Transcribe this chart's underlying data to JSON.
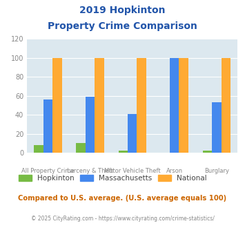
{
  "title_line1": "2019 Hopkinton",
  "title_line2": "Property Crime Comparison",
  "categories": [
    "All Property Crime",
    "Larceny & Theft",
    "Motor Vehicle Theft",
    "Arson",
    "Burglary"
  ],
  "cat_labels_line1": [
    "All Property Crime",
    "Larceny & Theft",
    "Motor Vehicle Theft",
    "Arson",
    "Burglary"
  ],
  "hopkinton": [
    8,
    10,
    2,
    0,
    2
  ],
  "massachusetts": [
    56,
    59,
    41,
    100,
    53
  ],
  "national": [
    100,
    100,
    100,
    100,
    100
  ],
  "colors": {
    "hopkinton": "#77bb44",
    "massachusetts": "#4488ee",
    "national": "#ffaa33"
  },
  "ylim": [
    0,
    120
  ],
  "yticks": [
    0,
    20,
    40,
    60,
    80,
    100,
    120
  ],
  "title_color": "#2255aa",
  "plot_bg": "#dce8ef",
  "footer_text": "Compared to U.S. average. (U.S. average equals 100)",
  "copyright_text": "© 2025 CityRating.com - https://www.cityrating.com/crime-statistics/",
  "footer_color": "#cc6600",
  "copyright_color": "#888888",
  "tick_color": "#888888",
  "grid_color": "#ffffff",
  "bar_width": 0.22
}
